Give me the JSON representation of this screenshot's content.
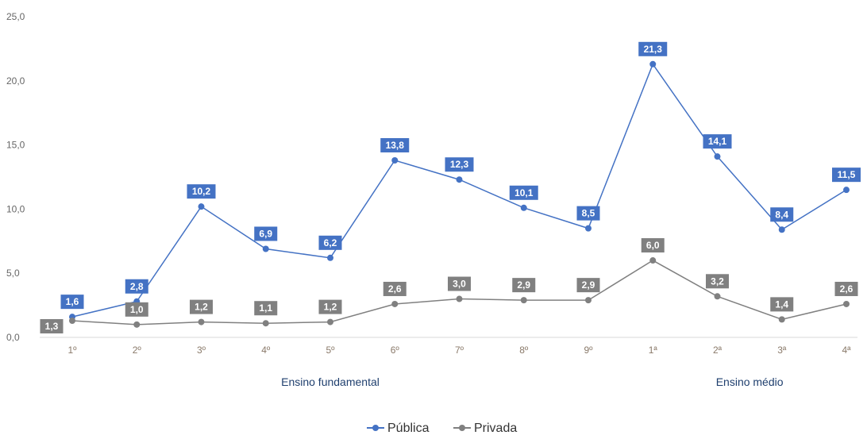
{
  "chart_data": {
    "type": "line",
    "categories": [
      "1º",
      "2º",
      "3º",
      "4º",
      "5º",
      "6º",
      "7º",
      "8º",
      "9º",
      "1ª",
      "2ª",
      "3ª",
      "4ª"
    ],
    "series": [
      {
        "name": "Pública",
        "color": "#4472c4",
        "values": [
          1.6,
          2.8,
          10.2,
          6.9,
          6.2,
          13.8,
          12.3,
          10.1,
          8.5,
          21.3,
          14.1,
          8.4,
          11.5
        ],
        "labels": [
          "1,6",
          "2,8",
          "10,2",
          "6,9",
          "6,2",
          "13,8",
          "12,3",
          "10,1",
          "8,5",
          "21,3",
          "14,1",
          "8,4",
          "11,5"
        ]
      },
      {
        "name": "Privada",
        "color": "#808080",
        "values": [
          1.3,
          1.0,
          1.2,
          1.1,
          1.2,
          2.6,
          3.0,
          2.9,
          2.9,
          6.0,
          3.2,
          1.4,
          2.6
        ],
        "labels": [
          "1,3",
          "1,0",
          "1,2",
          "1,1",
          "1,2",
          "2,6",
          "3,0",
          "2,9",
          "2,9",
          "6,0",
          "3,2",
          "1,4",
          "2,6"
        ]
      }
    ],
    "y_ticks": [
      "0,0",
      "5,0",
      "10,0",
      "15,0",
      "20,0",
      "25,0"
    ],
    "ylim": [
      0,
      25
    ],
    "groups": [
      {
        "label": "Ensino fundamental",
        "span": [
          0,
          8
        ]
      },
      {
        "label": "Ensino médio",
        "span": [
          9,
          12
        ]
      }
    ],
    "grid": false,
    "legend_position": "bottom-center"
  }
}
